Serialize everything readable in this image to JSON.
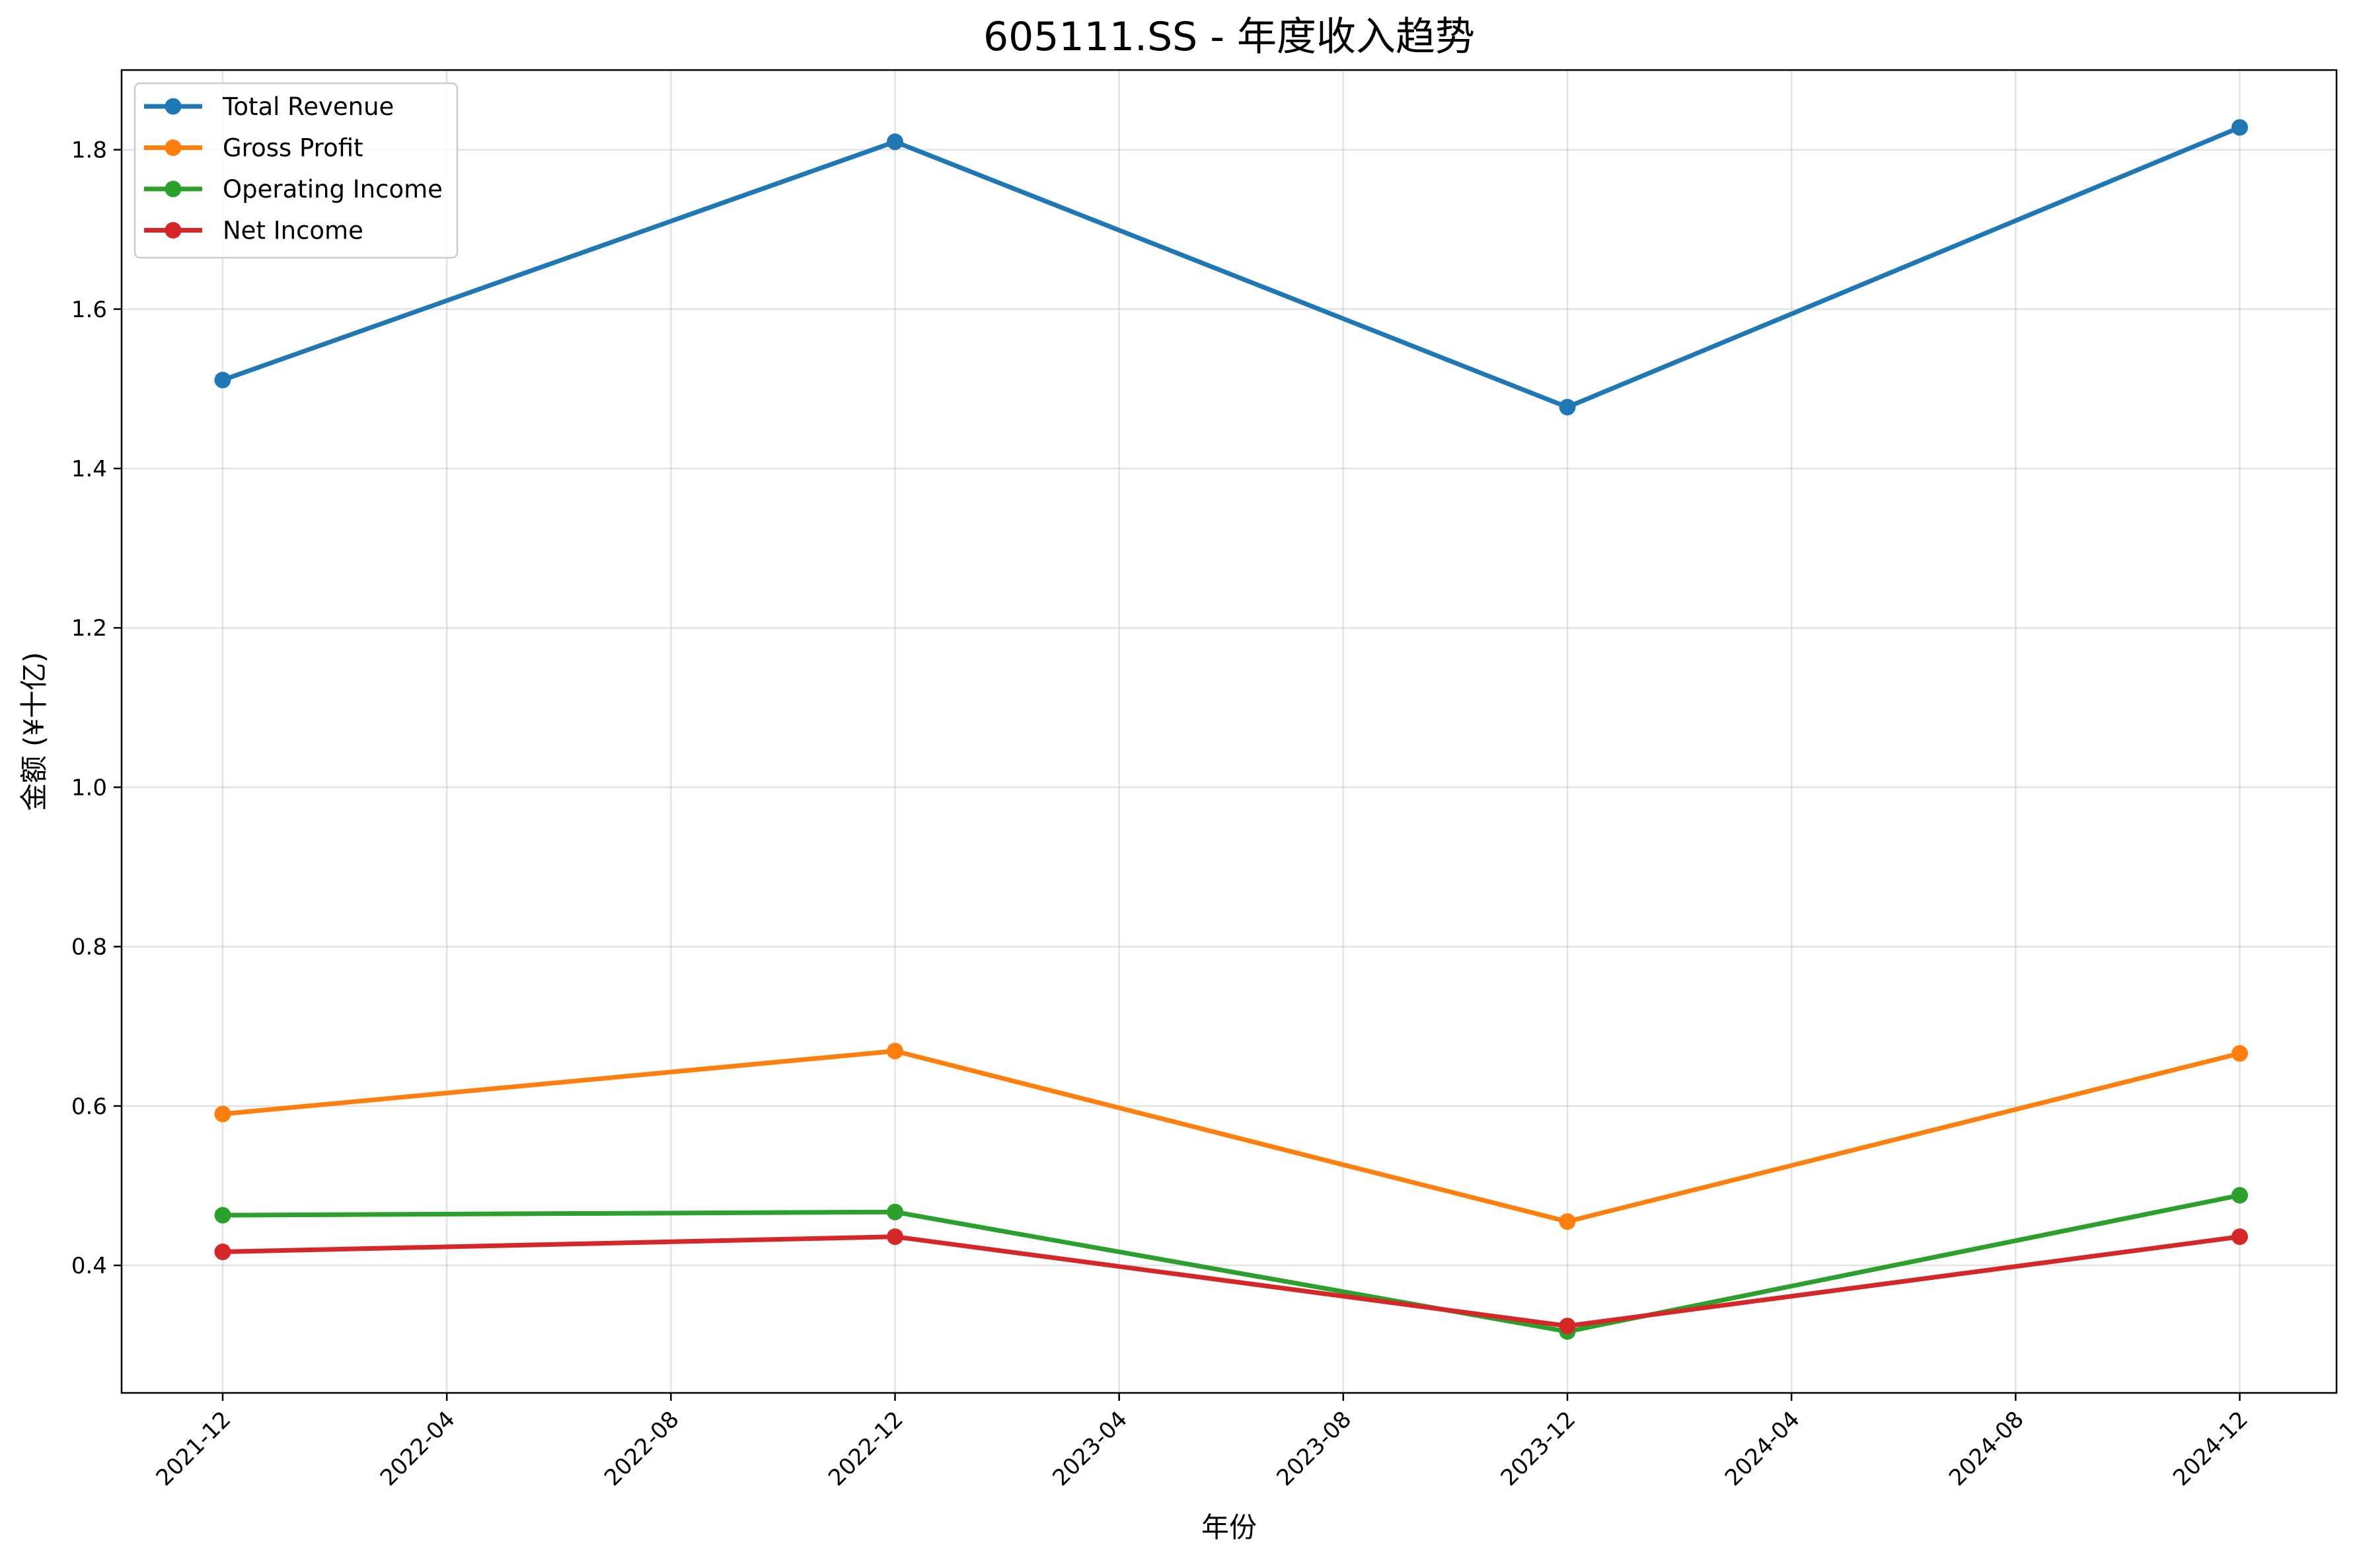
{
  "chart_data": {
    "type": "line",
    "title": "605111.SS - 年度收入趋势",
    "xlabel": "年份",
    "ylabel": "金额 (¥十亿)",
    "x": [
      "2021-12",
      "2022-12",
      "2023-12",
      "2024-12"
    ],
    "x_ticks": [
      "2021-12",
      "2022-04",
      "2022-08",
      "2022-12",
      "2023-04",
      "2023-08",
      "2023-12",
      "2024-04",
      "2024-08",
      "2024-12"
    ],
    "y_ticks": [
      "0.4",
      "0.6",
      "0.8",
      "1.0",
      "1.2",
      "1.4",
      "1.6",
      "1.8"
    ],
    "ylim": [
      0.24,
      1.9
    ],
    "grid": true,
    "legend_position": "top-left",
    "series": [
      {
        "name": "Total Revenue",
        "color": "#1f77b4",
        "values": [
          1.511,
          1.81,
          1.477,
          1.828
        ]
      },
      {
        "name": "Gross Profit",
        "color": "#ff7f0e",
        "values": [
          0.59,
          0.669,
          0.455,
          0.666
        ]
      },
      {
        "name": "Operating Income",
        "color": "#2ca02c",
        "values": [
          0.463,
          0.467,
          0.317,
          0.488
        ]
      },
      {
        "name": "Net Income",
        "color": "#d62728",
        "values": [
          0.417,
          0.436,
          0.324,
          0.436
        ]
      }
    ]
  }
}
